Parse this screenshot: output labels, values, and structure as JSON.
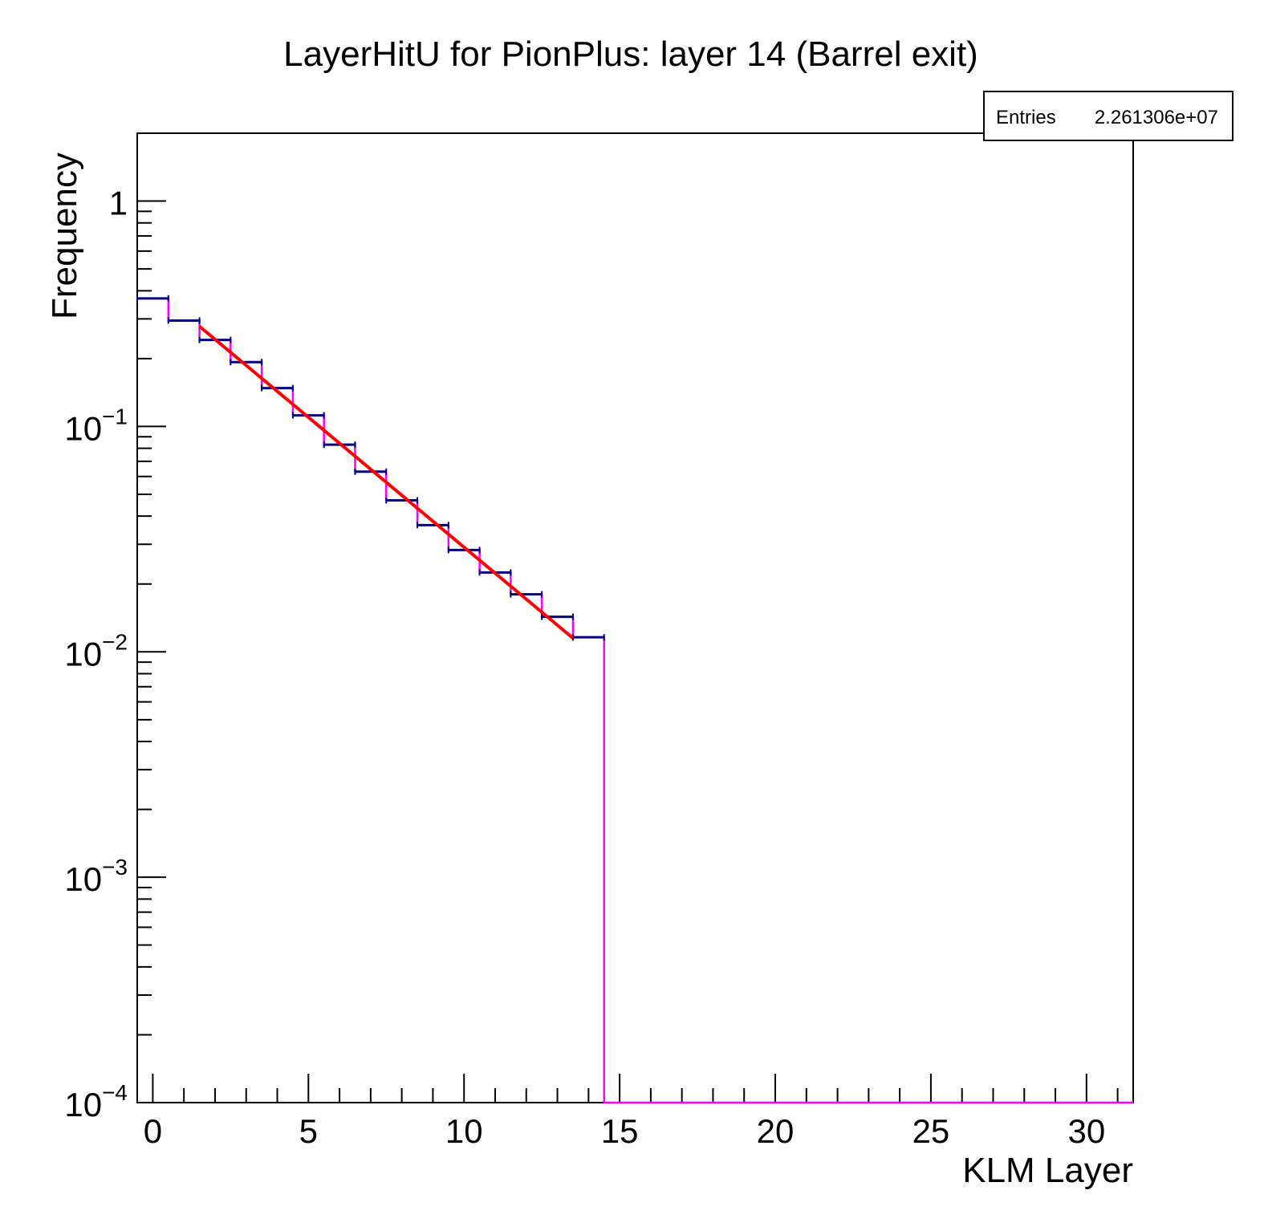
{
  "chart_data": {
    "type": "histogram",
    "title": "LayerHitU for PionPlus: layer 14 (Barrel exit)",
    "xlabel": "KLM Layer",
    "ylabel": "Frequency",
    "xlim": [
      -0.5,
      31.5
    ],
    "ylim": [
      0.0001,
      2.0
    ],
    "yscale": "log",
    "x_ticks": [
      0,
      5,
      10,
      15,
      20,
      25,
      30
    ],
    "y_ticks": [
      {
        "base": "10",
        "exp": "",
        "text": "1",
        "value": 1
      },
      {
        "base": "10",
        "exp": "−1",
        "value": 0.1
      },
      {
        "base": "10",
        "exp": "−2",
        "value": 0.01
      },
      {
        "base": "10",
        "exp": "−3",
        "value": 0.001
      },
      {
        "base": "10",
        "exp": "−4",
        "value": 0.0001
      }
    ],
    "bin_edges_start": -0.5,
    "bin_width": 1,
    "values": [
      0.37,
      0.295,
      0.242,
      0.193,
      0.148,
      0.112,
      0.083,
      0.063,
      0.047,
      0.0365,
      0.0283,
      0.0225,
      0.018,
      0.0143,
      0.0116,
      0,
      0,
      0,
      0,
      0,
      0,
      0,
      0,
      0,
      0,
      0,
      0,
      0,
      0,
      0,
      0,
      0
    ],
    "hist_color": "#ff00ff",
    "errorbar_color": "#00007f",
    "fit": {
      "color": "#ff0000",
      "x_start": 1.5,
      "x_end": 13.5,
      "y_start": 0.278,
      "y_end": 0.0115
    },
    "grid": false
  },
  "stats_box": {
    "label": "Entries",
    "value": "2.261306e+07"
  }
}
